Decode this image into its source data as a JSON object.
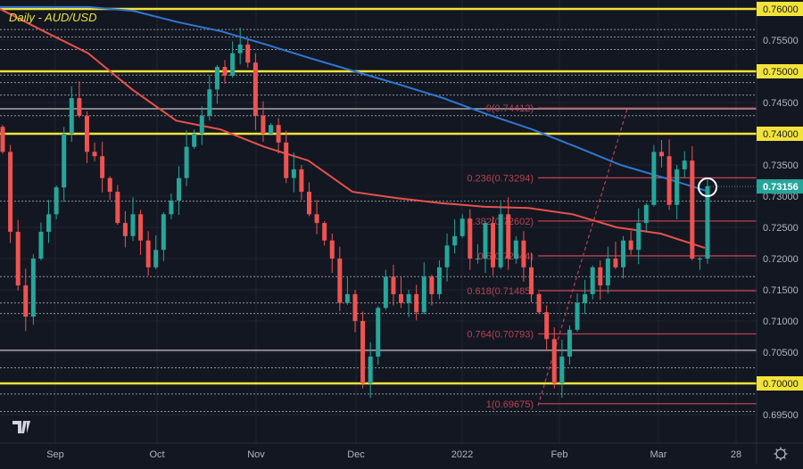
{
  "title": "Daily - AUD/USD",
  "colors": {
    "background": "#131722",
    "up": "#26a69a",
    "down": "#ef5350",
    "yellow": "#f2e33a",
    "fib": "#b9424f",
    "ma200": "#2f77d4",
    "ma100": "#e8514a",
    "grid_dotted": "#b8bcc6",
    "current": "#26a69a"
  },
  "chart_data": {
    "type": "candlestick",
    "title": "Daily - AUD/USD",
    "ylim": [
      0.6945,
      0.7615
    ],
    "y_ticks": [
      "0.69500",
      "0.70000",
      "0.70500",
      "0.71000",
      "0.71500",
      "0.72000",
      "0.72500",
      "0.73000",
      "0.73500",
      "0.74000",
      "0.74500",
      "0.75000",
      "0.75500",
      "0.76000"
    ],
    "x_ticks": [
      "Sep",
      "Oct",
      "Nov",
      "Dec",
      "2022",
      "Feb",
      "Mar",
      "28"
    ],
    "closes": [
      0.7371,
      0.7243,
      0.7157,
      0.7107,
      0.72,
      0.7243,
      0.7271,
      0.7314,
      0.74,
      0.7457,
      0.7429,
      0.7371,
      0.7364,
      0.7329,
      0.7307,
      0.7257,
      0.7236,
      0.7271,
      0.7229,
      0.7186,
      0.7214,
      0.7271,
      0.7293,
      0.7329,
      0.7379,
      0.74,
      0.7429,
      0.7471,
      0.7507,
      0.7493,
      0.7529,
      0.7543,
      0.7514,
      0.7429,
      0.74,
      0.7414,
      0.7386,
      0.7329,
      0.7343,
      0.7307,
      0.7271,
      0.7257,
      0.7229,
      0.72,
      0.7129,
      0.7143,
      0.71,
      0.7,
      0.7043,
      0.7121,
      0.7171,
      0.7143,
      0.7129,
      0.7143,
      0.7114,
      0.7171,
      0.7143,
      0.7186,
      0.7221,
      0.7236,
      0.7264,
      0.72,
      0.72,
      0.7257,
      0.7186,
      0.7271,
      0.72,
      0.7229,
      0.7186,
      0.7143,
      0.7114,
      0.7071,
      0.7,
      0.7043,
      0.7086,
      0.7129,
      0.7143,
      0.7186,
      0.7157,
      0.72,
      0.7186,
      0.7229,
      0.7214,
      0.7257,
      0.7286,
      0.7371,
      0.7364,
      0.7286,
      0.7343,
      0.7357,
      0.72,
      0.72,
      0.7316
    ],
    "ma200": [
      0.7603,
      0.7603,
      0.7603,
      0.7597,
      0.7579,
      0.7564,
      0.7543,
      0.7521,
      0.75,
      0.7479,
      0.7457,
      0.7431,
      0.7407,
      0.7379,
      0.735,
      0.7329,
      0.7307
    ],
    "ma100": [
      0.76,
      0.7564,
      0.7529,
      0.7471,
      0.7421,
      0.7407,
      0.7379,
      0.7357,
      0.7307,
      0.7297,
      0.7289,
      0.7283,
      0.7281,
      0.7271,
      0.725,
      0.724,
      0.7217
    ],
    "key_levels": [
      {
        "label": "0.76000",
        "value": 0.76
      },
      {
        "label": "0.75000",
        "value": 0.75
      },
      {
        "label": "0.74000",
        "value": 0.74
      },
      {
        "label": "0.70000",
        "value": 0.7
      }
    ],
    "fib_levels": [
      {
        "label": "0(0.74412)",
        "value": 0.74412
      },
      {
        "label": "0.236(0.73294)",
        "value": 0.73294
      },
      {
        "label": "0.382(0.72602)",
        "value": 0.72602
      },
      {
        "label": "0.5(0.72044)",
        "value": 0.72044
      },
      {
        "label": "0.618(0.71485)",
        "value": 0.71485
      },
      {
        "label": "0.764(0.70793)",
        "value": 0.70793
      },
      {
        "label": "1(0.69675)",
        "value": 0.69675
      }
    ],
    "dotted_levels": [
      0.7567,
      0.7555,
      0.7535,
      0.7494,
      0.7482,
      0.7462,
      0.7429,
      0.7292,
      0.7171,
      0.7129,
      0.7112,
      0.7025,
      0.6983,
      0.6955
    ],
    "solid_white_levels": [
      0.744,
      0.7053
    ],
    "current_price": {
      "label": "0.73156",
      "value": 0.73156
    }
  }
}
